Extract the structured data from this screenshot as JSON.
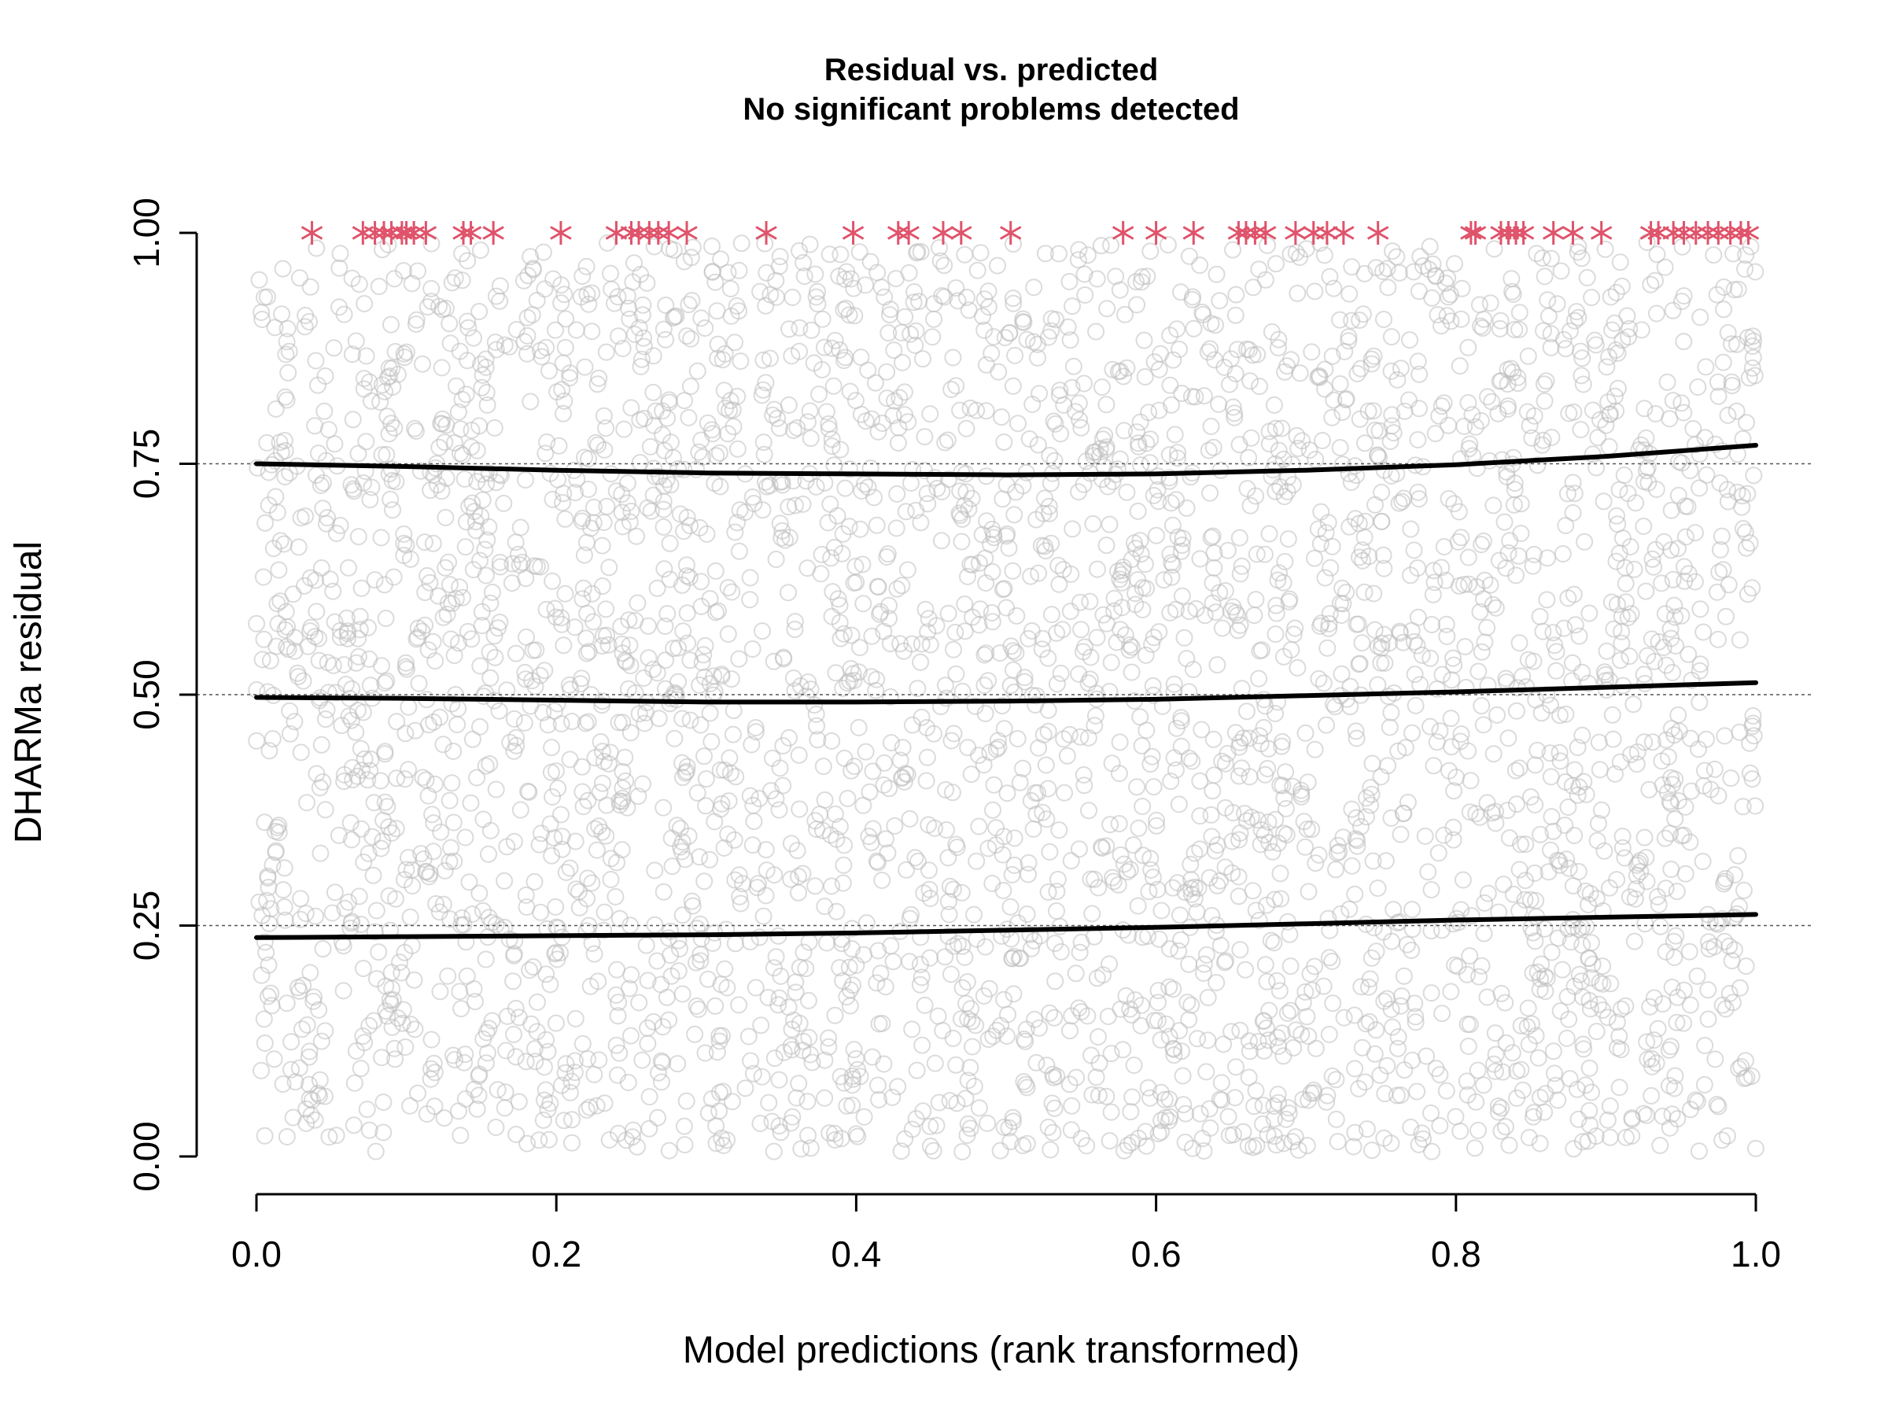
{
  "chart_data": {
    "type": "scatter",
    "title": "Residual vs. predicted",
    "subtitle": "No significant problems detected",
    "xlabel": "Model predictions (rank transformed)",
    "ylabel": "DHARMa residual",
    "xlim": [
      0,
      1
    ],
    "ylim": [
      0,
      1
    ],
    "x_ticks": [
      "0.0",
      "0.2",
      "0.4",
      "0.6",
      "0.8",
      "1.0"
    ],
    "y_ticks": [
      "0.00",
      "0.25",
      "0.50",
      "0.75",
      "1.00"
    ],
    "reference_lines": [
      0.25,
      0.5,
      0.75
    ],
    "grid": false,
    "series": [
      {
        "marker": "open-circle",
        "color": "#BEBEBE",
        "description_points": "approximately 5000 residual points distributed uniformly over [0,1] x [0,1]"
      },
      {
        "marker": "asterisk",
        "color": "#DF536B",
        "y": 1.0,
        "x": [
          0.037,
          0.071,
          0.079,
          0.085,
          0.09,
          0.097,
          0.1,
          0.105,
          0.113,
          0.138,
          0.143,
          0.158,
          0.203,
          0.24,
          0.25,
          0.255,
          0.262,
          0.268,
          0.275,
          0.287,
          0.34,
          0.398,
          0.428,
          0.435,
          0.458,
          0.47,
          0.503,
          0.578,
          0.6,
          0.625,
          0.655,
          0.66,
          0.666,
          0.673,
          0.693,
          0.705,
          0.714,
          0.725,
          0.748,
          0.81,
          0.813,
          0.83,
          0.835,
          0.84,
          0.845,
          0.865,
          0.878,
          0.897,
          0.93,
          0.935,
          0.945,
          0.952,
          0.96,
          0.968,
          0.975,
          0.983,
          0.99,
          0.995
        ]
      },
      {
        "name": "",
        "type": "line",
        "color": "#000000",
        "quantile": 0.75,
        "x": [
          0.0,
          0.1,
          0.2,
          0.3,
          0.4,
          0.5,
          0.6,
          0.7,
          0.8,
          0.9,
          1.0
        ],
        "y": [
          0.75,
          0.747,
          0.743,
          0.74,
          0.739,
          0.738,
          0.739,
          0.743,
          0.749,
          0.758,
          0.77
        ]
      },
      {
        "name": "",
        "type": "line",
        "color": "#000000",
        "quantile": 0.5,
        "x": [
          0.0,
          0.1,
          0.2,
          0.3,
          0.4,
          0.5,
          0.6,
          0.7,
          0.8,
          0.9,
          1.0
        ],
        "y": [
          0.497,
          0.496,
          0.494,
          0.492,
          0.492,
          0.493,
          0.495,
          0.499,
          0.503,
          0.508,
          0.513
        ]
      },
      {
        "name": "",
        "type": "line",
        "color": "#000000",
        "quantile": 0.25,
        "x": [
          0.0,
          0.1,
          0.2,
          0.3,
          0.4,
          0.5,
          0.6,
          0.7,
          0.8,
          0.9,
          1.0
        ],
        "y": [
          0.237,
          0.238,
          0.239,
          0.24,
          0.242,
          0.245,
          0.248,
          0.252,
          0.256,
          0.259,
          0.262
        ]
      }
    ]
  }
}
